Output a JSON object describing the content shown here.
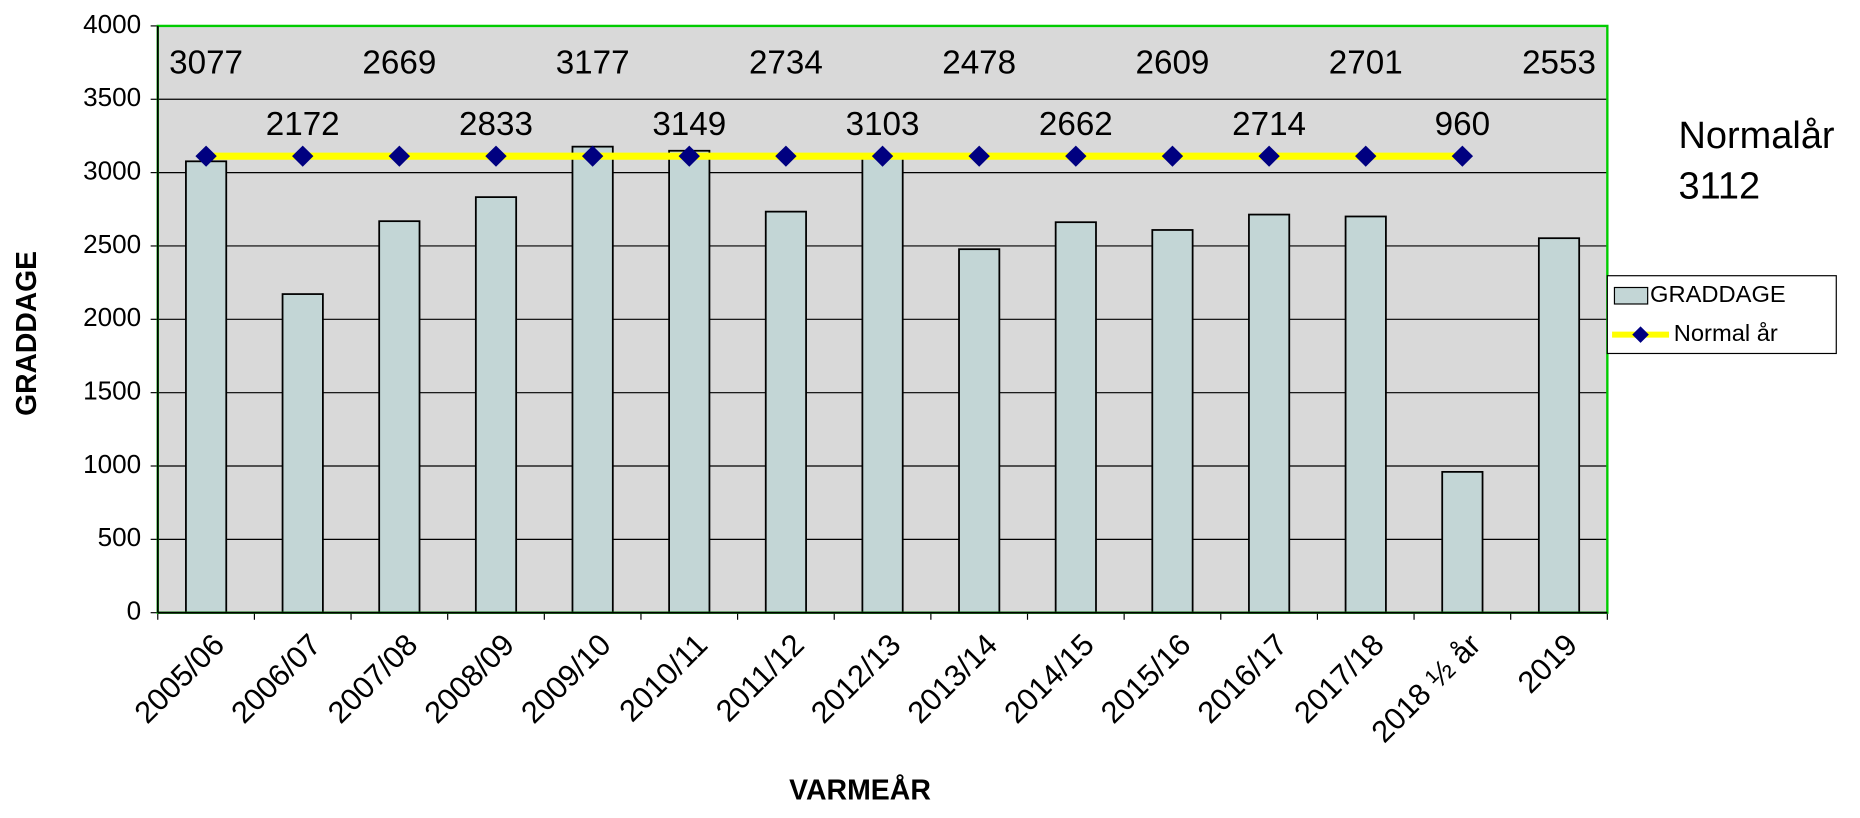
{
  "chart_data": {
    "type": "bar",
    "xlabel": "VARMEÅR",
    "ylabel": "GRADDAGE",
    "annotation": [
      "Normalår",
      "3112"
    ],
    "categories": [
      "2005/06",
      "2006/07",
      "2007/08",
      "2008/09",
      "2009/10",
      "2010/11",
      "2011/12",
      "2012/13",
      "2013/14",
      "2014/15",
      "2015/16",
      "2016/17",
      "2017/18",
      "2018 ½ år",
      "2019"
    ],
    "series": [
      {
        "name": "GRADDAGE",
        "type": "bar",
        "color": "#c3d6d6",
        "values": [
          3077,
          2172,
          2669,
          2833,
          3177,
          3149,
          2734,
          3103,
          2478,
          2662,
          2609,
          2714,
          2701,
          960,
          2553
        ]
      },
      {
        "name": "Normal år",
        "type": "line",
        "color": "#ffff00",
        "marker_color": "#000080",
        "values": [
          3112,
          3112,
          3112,
          3112,
          3112,
          3112,
          3112,
          3112,
          3112,
          3112,
          3112,
          3112,
          3112,
          3112,
          null
        ]
      }
    ],
    "ylim": [
      0,
      4000
    ],
    "yticks": [
      0,
      500,
      1000,
      1500,
      2000,
      2500,
      3000,
      3500,
      4000
    ],
    "grid": true,
    "legend": "right"
  }
}
